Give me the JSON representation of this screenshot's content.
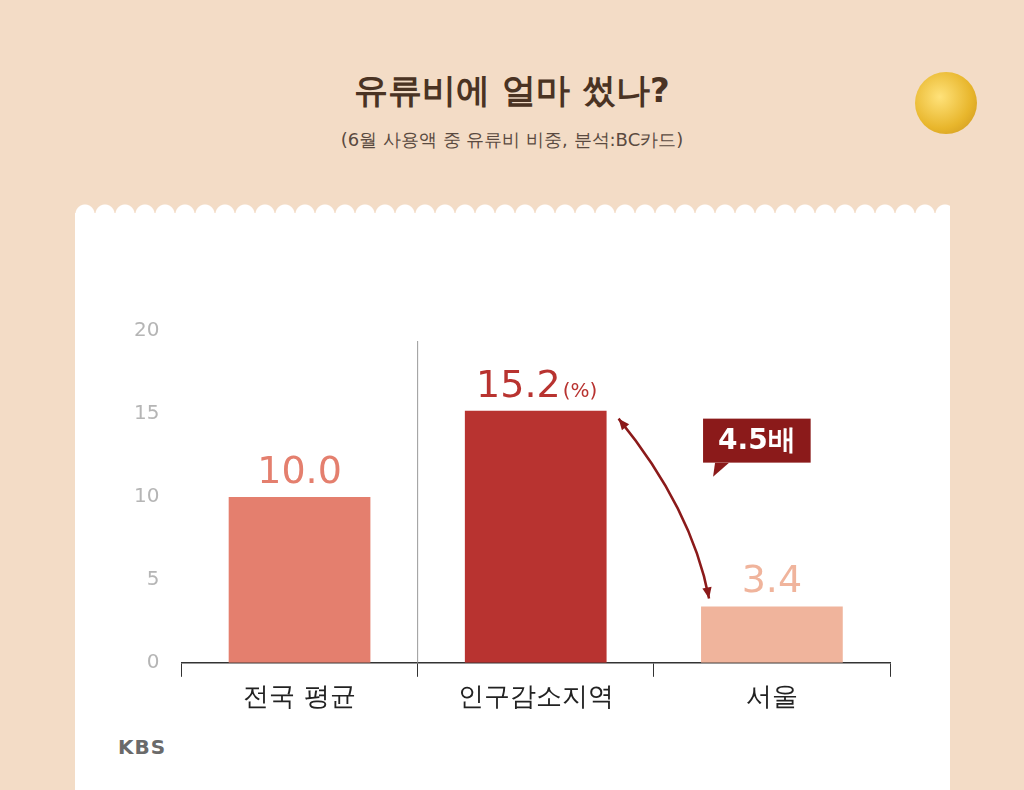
{
  "chart_data": {
    "type": "bar",
    "title": "유류비에 얼마 썼나?",
    "subtitle": "(6월 사용액 중 유류비 비중, 분석:BC카드)",
    "categories": [
      "전국 평균",
      "인구감소지역",
      "서울"
    ],
    "values": [
      10.0,
      15.2,
      3.4
    ],
    "value_labels": [
      "10.0",
      "15.2(%)",
      "3.4"
    ],
    "colors": [
      "#e47f6e",
      "#b83330",
      "#f0b49c"
    ],
    "ylim": [
      0,
      20
    ],
    "yticks": [
      0,
      5,
      10,
      15,
      20
    ],
    "grid": false,
    "data_labels": true,
    "annotations": [
      {
        "text": "4.5배",
        "from": "인구감소지역",
        "to": "서울"
      }
    ],
    "source": "KBS"
  }
}
